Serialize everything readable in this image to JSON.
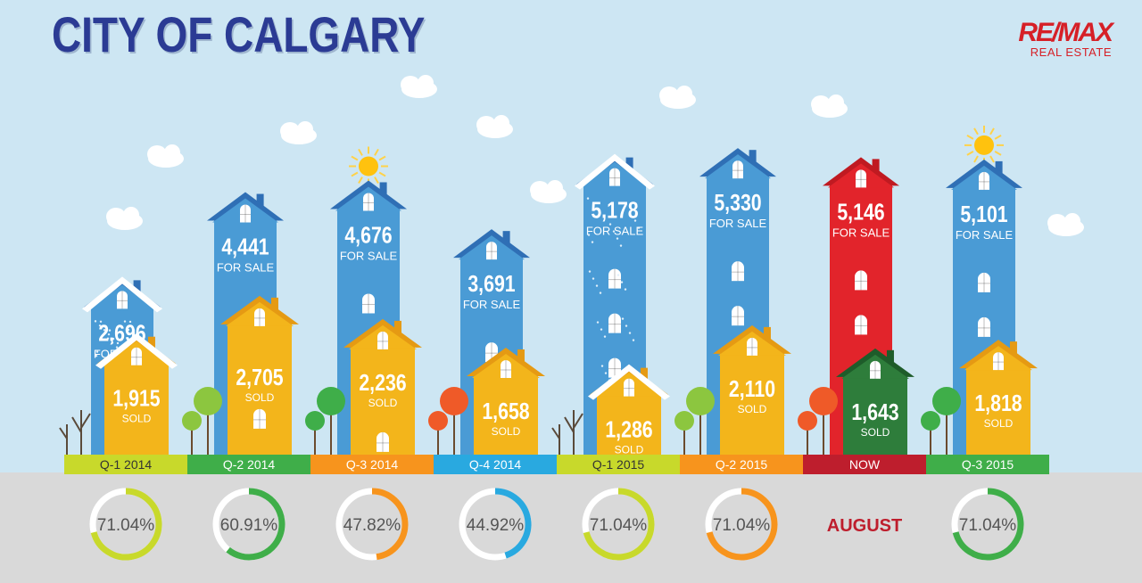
{
  "title": "CITY OF CALGARY",
  "brand": {
    "name": "RE/MAX",
    "tagline": "REAL ESTATE",
    "color": "#d62027"
  },
  "chart_data": {
    "type": "bar",
    "title": "CITY OF CALGARY",
    "categories": [
      "Q-1 2014",
      "Q-2 2014",
      "Q-3 2014",
      "Q-4 2014",
      "Q-1 2015",
      "Q-2 2015",
      "NOW",
      "Q-3 2015"
    ],
    "series": [
      {
        "name": "FOR SALE",
        "values": [
          2696,
          4441,
          4676,
          3691,
          5178,
          5330,
          5146,
          5101
        ],
        "labels": [
          "2,696",
          "4,441",
          "4,676",
          "3,691",
          "5,178",
          "5,330",
          "5,146",
          "5,101"
        ]
      },
      {
        "name": "SOLD",
        "values": [
          1915,
          2705,
          2236,
          1658,
          1286,
          2110,
          1643,
          1818
        ],
        "labels": [
          "1,915",
          "2,705",
          "2,236",
          "1,658",
          "1,286",
          "2,110",
          "1,643",
          "1,818"
        ]
      }
    ],
    "rings": [
      {
        "label": "71.04%",
        "value": 71.04
      },
      {
        "label": "60.91%",
        "value": 60.91
      },
      {
        "label": "47.82%",
        "value": 47.82
      },
      {
        "label": "44.92%",
        "value": 44.92
      },
      {
        "label": "71.04%",
        "value": 71.04
      },
      {
        "label": "71.04%",
        "value": 71.04
      },
      {
        "label": "AUGUST",
        "value": null
      },
      {
        "label": "71.04%",
        "value": 71.04
      }
    ],
    "quarter_colors": [
      "#c8d92b",
      "#3fae49",
      "#f7941d",
      "#29a9e0",
      "#c8d92b",
      "#f7941d",
      "#be1e2d",
      "#3fae49"
    ],
    "tall_colors": [
      "#4a9bd5",
      "#4a9bd5",
      "#4a9bd5",
      "#4a9bd5",
      "#4a9bd5",
      "#4a9bd5",
      "#e2242b",
      "#4a9bd5"
    ],
    "short_colors": [
      "#f3b51b",
      "#f3b51b",
      "#f3b51b",
      "#f3b51b",
      "#f3b51b",
      "#f3b51b",
      "#2e7d3b",
      "#f3b51b"
    ],
    "decorations": {
      "snow": [
        true,
        false,
        false,
        false,
        true,
        false,
        false,
        false
      ],
      "sun": [
        false,
        false,
        true,
        false,
        false,
        false,
        false,
        true
      ],
      "tree_colors": [
        "#6b5a4a",
        "#8cc63f",
        "#3fae49",
        "#ef5a28",
        "#6b5a4a",
        "#8cc63f",
        "#ef5a28",
        "#3fae49"
      ]
    }
  }
}
